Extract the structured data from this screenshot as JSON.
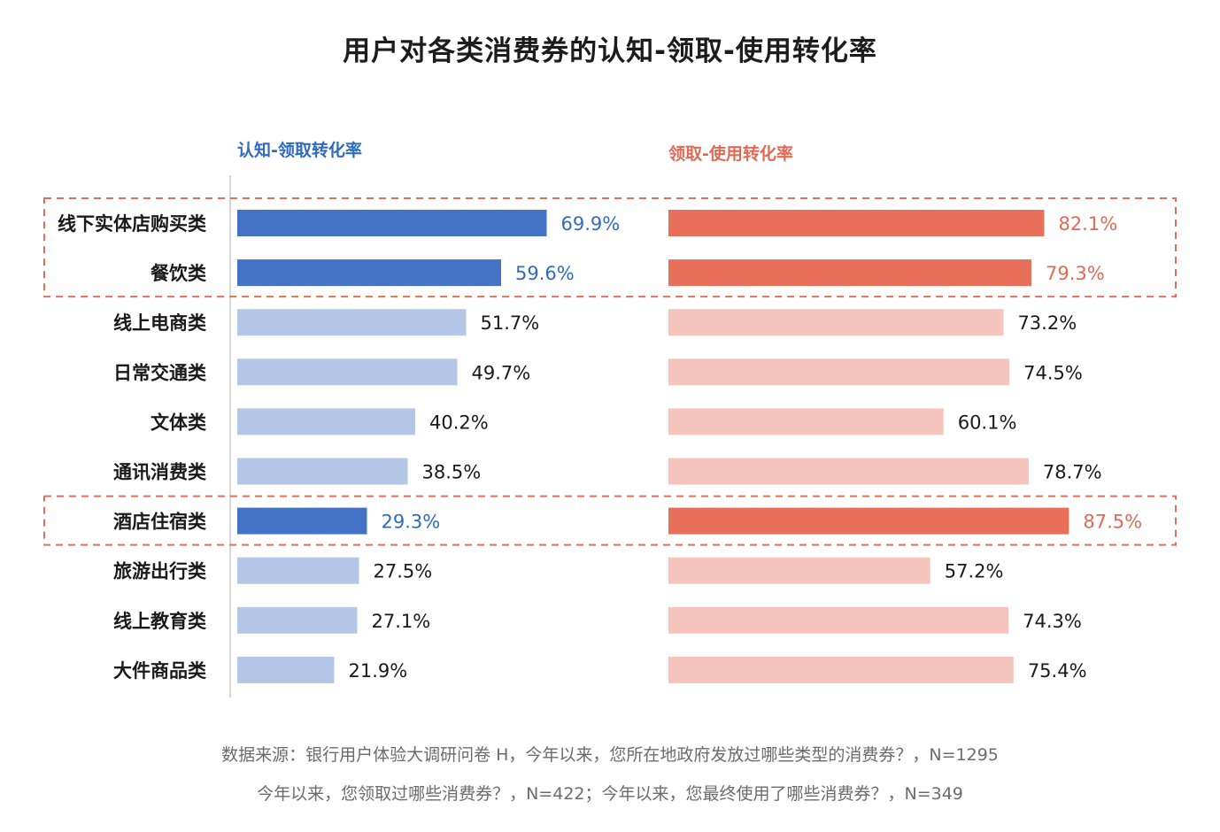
{
  "chart_data": {
    "type": "bar",
    "orientation": "horizontal",
    "title": "用户对各类消费券的认知-领取-使用转化率",
    "categories": [
      "线下实体店购买类",
      "餐饮类",
      "线上电商类",
      "日常交通类",
      "文体类",
      "通讯消费类",
      "酒店住宿类",
      "旅游出行类",
      "线上教育类",
      "大件商品类"
    ],
    "series": [
      {
        "name": "认知-领取转化率",
        "values": [
          69.9,
          59.6,
          51.7,
          49.7,
          40.2,
          38.5,
          29.3,
          27.5,
          27.1,
          21.9
        ],
        "labels": [
          "69.9%",
          "59.6%",
          "51.7%",
          "49.7%",
          "40.2%",
          "38.5%",
          "29.3%",
          "27.5%",
          "27.1%",
          "21.9%"
        ]
      },
      {
        "name": "领取-使用转化率",
        "values": [
          82.1,
          79.3,
          73.2,
          74.5,
          60.1,
          78.7,
          87.5,
          57.2,
          74.3,
          75.4
        ],
        "labels": [
          "82.1%",
          "79.3%",
          "73.2%",
          "74.5%",
          "60.1%",
          "78.7%",
          "87.5%",
          "57.2%",
          "74.3%",
          "75.4%"
        ]
      }
    ],
    "highlighted_categories": [
      "线下实体店购买类",
      "餐饮类",
      "酒店住宿类"
    ],
    "xlim": [
      0,
      100
    ],
    "grid": false,
    "legend_position": "above each panel"
  },
  "colors": {
    "blue_highlight": "#4472c4",
    "blue_light": "#b4c7e7",
    "blue_text": "#2e6bbf",
    "red_highlight": "#e8705a",
    "red_light": "#f5c5bd",
    "red_text": "#e06a55",
    "highlight_box": "#e0705a",
    "value_text": "#1a1a1a",
    "axis": "#c8c8c8"
  },
  "footnote": {
    "line1": "数据来源：银行用户体验大调研问卷 H，今年以来，您所在地政府发放过哪些类型的消费券？，N=1295",
    "line2": "今年以来，您领取过哪些消费券？，N=422；今年以来，您最终使用了哪些消费券？，N=349"
  }
}
